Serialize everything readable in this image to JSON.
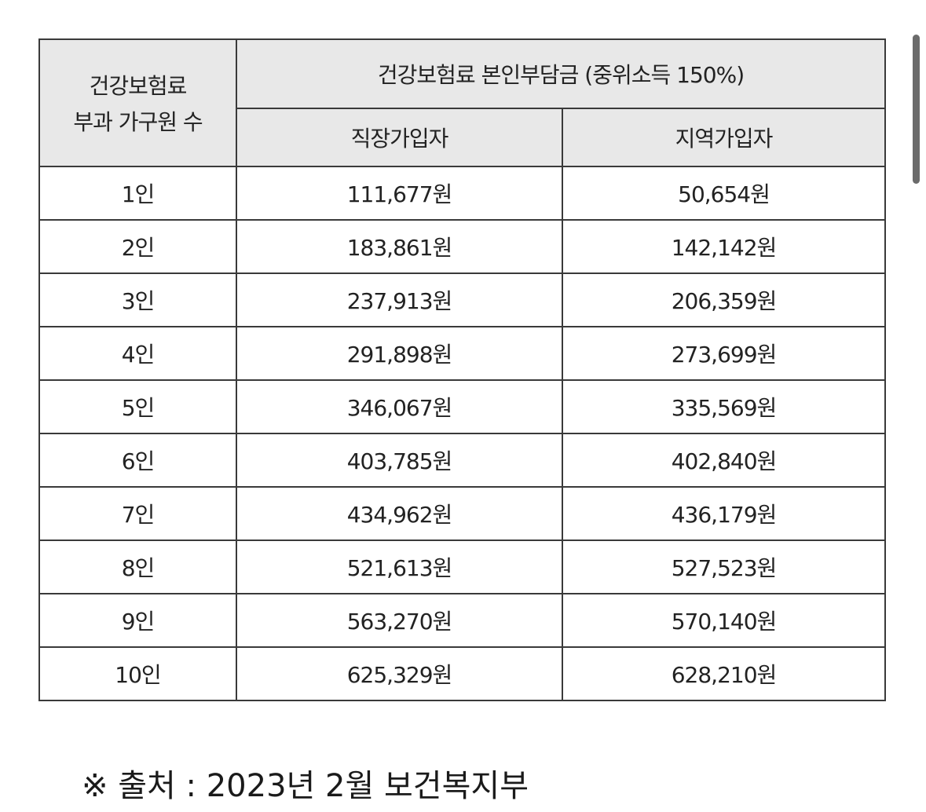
{
  "table": {
    "header_group": "건강보험료 부과 가구원 수",
    "header_group_line1": "건강보험료",
    "header_group_line2": "부과 가구원 수",
    "header_main": "건강보험료 본인부담금 (중위소득 150%)",
    "col_employee": "직장가입자",
    "col_regional": "지역가입자",
    "rows": [
      {
        "members": "1인",
        "employee": "111,677원",
        "regional": "50,654원"
      },
      {
        "members": "2인",
        "employee": "183,861원",
        "regional": "142,142원"
      },
      {
        "members": "3인",
        "employee": "237,913원",
        "regional": "206,359원"
      },
      {
        "members": "4인",
        "employee": "291,898원",
        "regional": "273,699원"
      },
      {
        "members": "5인",
        "employee": "346,067원",
        "regional": "335,569원"
      },
      {
        "members": "6인",
        "employee": "403,785원",
        "regional": "402,840원"
      },
      {
        "members": "7인",
        "employee": "434,962원",
        "regional": "436,179원"
      },
      {
        "members": "8인",
        "employee": "521,613원",
        "regional": "527,523원"
      },
      {
        "members": "9인",
        "employee": "563,270원",
        "regional": "570,140원"
      },
      {
        "members": "10인",
        "employee": "625,329원",
        "regional": "628,210원"
      }
    ]
  },
  "source": "※ 출처 : 2023년 2월 보건복지부"
}
